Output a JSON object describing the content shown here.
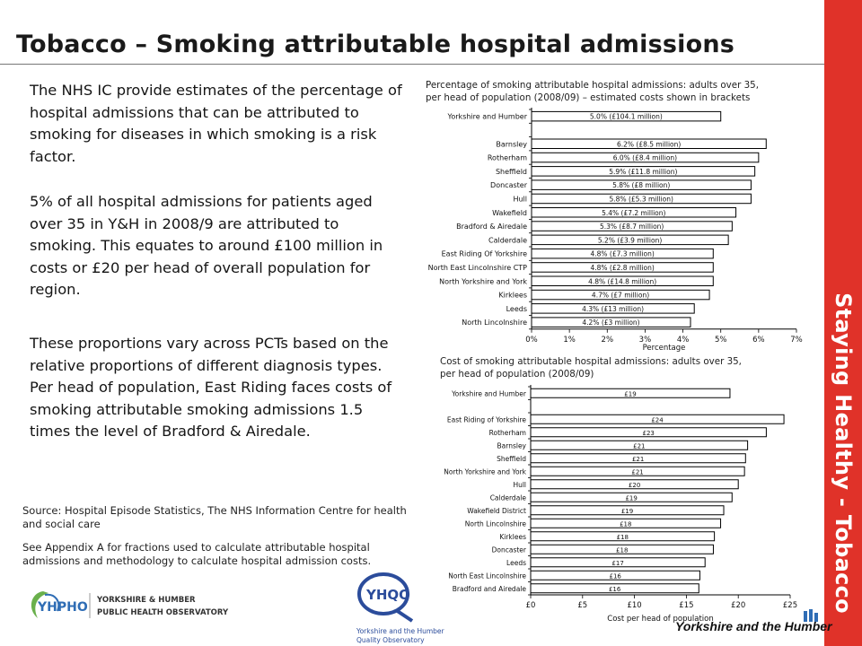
{
  "title": "Tobacco – Smoking attributable hospital admissions",
  "side_label": "Staying Healthy - Tobacco",
  "paragraphs": [
    "The NHS IC provide estimates of the percentage of hospital admissions that can be attributed to smoking for diseases in which smoking is a risk factor.",
    "5% of all hospital admissions for patients aged over 35 in Y&H in 2008/9 are attributed to smoking. This equates to around £100 million in costs or £20 per head of overall population for region.",
    "These proportions vary across PCTs based on the relative proportions of different diagnosis types. Per head of population, East Riding faces costs of smoking attributable smoking admissions 1.5 times the level of Bradford & Airedale."
  ],
  "source_lines": [
    "Source: Hospital Episode Statistics, The NHS Information Centre for health and social care",
    "See Appendix A for fractions used to calculate attributable hospital admissions and methodology to calculate hospital admission costs."
  ],
  "logos": {
    "yhpho_short": "YHPHO",
    "yhpho_line1": "YORKSHIRE & HUMBER",
    "yhpho_line2": "PUBLIC HEALTH OBSERVATORY",
    "yhqo_short": "YHQO",
    "yhqo_line1": "Yorkshire and the Humber",
    "yhqo_line2": "Quality Observatory",
    "brand": "Yorkshire and the Humber"
  },
  "colors": {
    "side_band": "#e03229",
    "bar_fill": "#ffffff",
    "bar_stroke": "#000000"
  },
  "chart_data": [
    {
      "type": "bar",
      "orientation": "horizontal",
      "title": "Percentage of smoking attributable hospital admissions: adults over 35,\nper head of population (2008/09) – estimated costs shown in brackets",
      "xlabel": "Percentage",
      "xlim": [
        0,
        7
      ],
      "xticks": [
        "0%",
        "1%",
        "2%",
        "3%",
        "4%",
        "5%",
        "6%",
        "7%"
      ],
      "grid": false,
      "rows": [
        {
          "category": "Yorkshire and Humber",
          "value": 5.0,
          "label": "5.0% (£104.1 million)"
        },
        {
          "category": "",
          "value": null,
          "label": ""
        },
        {
          "category": "Barnsley",
          "value": 6.2,
          "label": "6.2% (£8.5 million)"
        },
        {
          "category": "Rotherham",
          "value": 6.0,
          "label": "6.0% (£8.4 million)"
        },
        {
          "category": "Sheffield",
          "value": 5.9,
          "label": "5.9% (£11.8 million)"
        },
        {
          "category": "Doncaster",
          "value": 5.8,
          "label": "5.8% (£8 million)"
        },
        {
          "category": "Hull",
          "value": 5.8,
          "label": "5.8% (£5.3 million)"
        },
        {
          "category": "Wakefield",
          "value": 5.4,
          "label": "5.4% (£7.2 million)"
        },
        {
          "category": "Bradford & Airedale",
          "value": 5.3,
          "label": "5.3% (£8.7 million)"
        },
        {
          "category": "Calderdale",
          "value": 5.2,
          "label": "5.2% (£3.9 million)"
        },
        {
          "category": "East Riding Of Yorkshire",
          "value": 4.8,
          "label": "4.8% (£7.3 million)"
        },
        {
          "category": "North East Lincolnshire CTP",
          "value": 4.8,
          "label": "4.8% (£2.8 million)"
        },
        {
          "category": "North Yorkshire and York",
          "value": 4.8,
          "label": "4.8% (£14.8 million)"
        },
        {
          "category": "Kirklees",
          "value": 4.7,
          "label": "4.7% (£7 million)"
        },
        {
          "category": "Leeds",
          "value": 4.3,
          "label": "4.3% (£13 million)"
        },
        {
          "category": "North Lincolnshire",
          "value": 4.2,
          "label": "4.2% (£3 million)"
        }
      ]
    },
    {
      "type": "bar",
      "orientation": "horizontal",
      "title": "Cost of smoking attributable hospital admissions: adults over 35,\nper head of population (2008/09)",
      "xlabel": "Cost per head of population",
      "xlim": [
        0,
        25
      ],
      "xticks": [
        "£0",
        "£5",
        "£10",
        "£15",
        "£20",
        "£25"
      ],
      "grid": false,
      "rows": [
        {
          "category": "Yorkshire and Humber",
          "value": 19.2,
          "label": "£19"
        },
        {
          "category": "",
          "value": null,
          "label": ""
        },
        {
          "category": "East Riding of Yorkshire",
          "value": 24.4,
          "label": "£24"
        },
        {
          "category": "Rotherham",
          "value": 22.7,
          "label": "£23"
        },
        {
          "category": "Barnsley",
          "value": 20.9,
          "label": "£21"
        },
        {
          "category": "Sheffield",
          "value": 20.7,
          "label": "£21"
        },
        {
          "category": "North Yorkshire and York",
          "value": 20.6,
          "label": "£21"
        },
        {
          "category": "Hull",
          "value": 20.0,
          "label": "£20"
        },
        {
          "category": "Calderdale",
          "value": 19.4,
          "label": "£19"
        },
        {
          "category": "Wakefield District",
          "value": 18.6,
          "label": "£19"
        },
        {
          "category": "North Lincolnshire",
          "value": 18.3,
          "label": "£18"
        },
        {
          "category": "Kirklees",
          "value": 17.7,
          "label": "£18"
        },
        {
          "category": "Doncaster",
          "value": 17.6,
          "label": "£18"
        },
        {
          "category": "Leeds",
          "value": 16.8,
          "label": "£17"
        },
        {
          "category": "North East Lincolnshire",
          "value": 16.3,
          "label": "£16"
        },
        {
          "category": "Bradford and Airedale",
          "value": 16.2,
          "label": "£16"
        }
      ]
    }
  ]
}
